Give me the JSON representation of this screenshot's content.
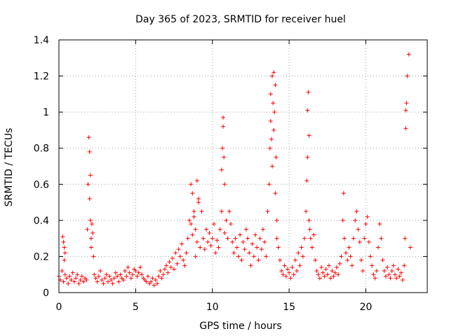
{
  "chart_data": {
    "type": "scatter",
    "title": "Day 365 of 2023, SRMTID for receiver huel",
    "xlabel": "GPS time / hours",
    "ylabel": "SRMTID / TECUs",
    "xlim": [
      0,
      24
    ],
    "ylim": [
      0,
      1.4
    ],
    "xticks": [
      0,
      5,
      10,
      15,
      20
    ],
    "xtick_labels": [
      "0",
      "5",
      "10",
      "15",
      "20"
    ],
    "yticks": [
      0,
      0.2,
      0.4,
      0.6,
      0.8,
      1.0,
      1.2,
      1.4
    ],
    "ytick_labels": [
      "0",
      "0.2",
      "0.4",
      "0.6",
      "0.8",
      "1",
      "1.2",
      "1.4"
    ],
    "grid": true,
    "marker": "plus",
    "color": "#ff0000",
    "series": [
      {
        "name": "huel",
        "x": [
          0.0,
          0.1,
          0.2,
          0.3,
          0.4,
          0.5,
          0.6,
          0.7,
          0.8,
          0.9,
          1.0,
          1.1,
          1.2,
          1.3,
          1.4,
          1.5,
          1.6,
          1.7,
          1.8,
          0.25,
          0.3,
          0.35,
          0.35,
          0.4,
          1.85,
          1.9,
          1.95,
          2.0,
          2.0,
          2.05,
          2.05,
          2.1,
          2.1,
          2.15,
          2.2,
          2.25,
          2.3,
          2.4,
          2.5,
          2.6,
          2.7,
          2.8,
          2.9,
          3.0,
          3.1,
          3.2,
          3.3,
          3.4,
          3.5,
          3.6,
          3.7,
          3.8,
          3.9,
          4.0,
          4.1,
          4.2,
          4.3,
          4.4,
          4.5,
          4.6,
          4.7,
          4.8,
          4.9,
          5.0,
          5.1,
          5.2,
          5.3,
          5.4,
          5.5,
          5.6,
          5.7,
          5.8,
          5.9,
          6.0,
          6.1,
          6.2,
          6.3,
          6.4,
          6.5,
          6.6,
          6.7,
          6.8,
          6.9,
          7.0,
          7.1,
          7.2,
          7.3,
          7.4,
          7.5,
          7.6,
          7.7,
          7.8,
          7.9,
          8.0,
          8.1,
          8.2,
          8.3,
          8.4,
          8.5,
          8.6,
          8.7,
          8.8,
          8.9,
          9.0,
          9.1,
          9.2,
          8.6,
          8.7,
          8.8,
          8.9,
          9.0,
          9.1,
          9.3,
          9.4,
          9.5,
          9.6,
          9.7,
          9.8,
          9.9,
          10.0,
          10.1,
          10.2,
          10.3,
          10.4,
          10.5,
          10.6,
          10.6,
          10.65,
          10.7,
          10.7,
          10.75,
          10.8,
          10.8,
          10.9,
          11.0,
          11.1,
          11.2,
          11.3,
          11.4,
          11.5,
          11.6,
          11.7,
          11.8,
          11.9,
          12.0,
          12.1,
          12.2,
          12.3,
          12.4,
          12.5,
          12.6,
          12.7,
          12.8,
          12.9,
          13.0,
          13.1,
          13.2,
          13.3,
          13.4,
          13.5,
          13.6,
          13.7,
          13.75,
          13.8,
          13.8,
          13.85,
          13.9,
          13.9,
          13.95,
          14.0,
          14.0,
          14.05,
          14.1,
          14.1,
          14.15,
          14.2,
          14.2,
          14.3,
          14.4,
          14.5,
          14.6,
          14.7,
          14.8,
          14.9,
          15.0,
          15.1,
          15.2,
          15.3,
          15.4,
          15.5,
          15.6,
          15.7,
          15.8,
          15.9,
          16.0,
          16.1,
          16.15,
          16.2,
          16.2,
          16.25,
          16.3,
          16.3,
          16.35,
          16.4,
          16.5,
          16.6,
          16.7,
          16.8,
          16.9,
          17.0,
          17.1,
          17.2,
          17.3,
          17.4,
          17.5,
          17.6,
          17.7,
          17.8,
          17.9,
          18.0,
          18.1,
          18.2,
          18.3,
          18.4,
          18.5,
          18.55,
          18.6,
          18.7,
          18.8,
          18.9,
          19.0,
          19.1,
          19.2,
          19.3,
          19.4,
          19.5,
          19.6,
          19.7,
          19.8,
          19.9,
          20.0,
          20.1,
          20.2,
          20.3,
          20.4,
          20.5,
          20.6,
          20.7,
          20.8,
          20.9,
          21.0,
          21.1,
          21.2,
          21.3,
          21.4,
          21.5,
          21.6,
          21.7,
          21.8,
          21.9,
          22.0,
          22.1,
          22.2,
          22.3,
          22.4,
          22.5,
          22.55,
          22.6,
          22.6,
          22.65,
          22.7,
          22.8,
          22.9
        ],
        "y": [
          0.09,
          0.07,
          0.12,
          0.06,
          0.1,
          0.08,
          0.05,
          0.09,
          0.07,
          0.11,
          0.06,
          0.08,
          0.1,
          0.05,
          0.07,
          0.09,
          0.06,
          0.08,
          0.07,
          0.31,
          0.28,
          0.25,
          0.18,
          0.22,
          0.35,
          0.6,
          0.86,
          0.78,
          0.52,
          0.65,
          0.4,
          0.3,
          0.25,
          0.38,
          0.33,
          0.2,
          0.1,
          0.08,
          0.06,
          0.09,
          0.12,
          0.07,
          0.05,
          0.08,
          0.1,
          0.06,
          0.09,
          0.07,
          0.05,
          0.08,
          0.11,
          0.09,
          0.06,
          0.1,
          0.08,
          0.07,
          0.12,
          0.09,
          0.14,
          0.11,
          0.08,
          0.1,
          0.13,
          0.12,
          0.09,
          0.11,
          0.14,
          0.1,
          0.08,
          0.07,
          0.06,
          0.09,
          0.05,
          0.06,
          0.08,
          0.04,
          0.07,
          0.05,
          0.09,
          0.12,
          0.08,
          0.1,
          0.13,
          0.15,
          0.11,
          0.17,
          0.14,
          0.19,
          0.13,
          0.22,
          0.16,
          0.24,
          0.2,
          0.27,
          0.18,
          0.15,
          0.22,
          0.3,
          0.4,
          0.6,
          0.55,
          0.45,
          0.35,
          0.62,
          0.5,
          0.25,
          0.38,
          0.32,
          0.42,
          0.2,
          0.28,
          0.52,
          0.45,
          0.3,
          0.24,
          0.35,
          0.28,
          0.33,
          0.26,
          0.3,
          0.38,
          0.22,
          0.29,
          0.25,
          0.35,
          0.45,
          0.68,
          0.8,
          0.92,
          0.97,
          0.75,
          0.6,
          0.33,
          0.4,
          0.3,
          0.45,
          0.38,
          0.28,
          0.22,
          0.3,
          0.25,
          0.2,
          0.32,
          0.18,
          0.28,
          0.24,
          0.35,
          0.3,
          0.22,
          0.15,
          0.27,
          0.2,
          0.32,
          0.25,
          0.18,
          0.3,
          0.24,
          0.35,
          0.28,
          0.2,
          0.45,
          0.6,
          0.8,
          0.95,
          1.1,
          0.85,
          1.2,
          0.7,
          1.05,
          1.22,
          0.9,
          1.0,
          0.55,
          1.15,
          0.75,
          0.4,
          0.3,
          0.25,
          0.18,
          0.12,
          0.1,
          0.15,
          0.09,
          0.13,
          0.11,
          0.08,
          0.14,
          0.1,
          0.18,
          0.12,
          0.22,
          0.15,
          0.25,
          0.2,
          0.3,
          0.45,
          0.62,
          0.75,
          1.01,
          1.11,
          0.87,
          0.4,
          0.35,
          0.3,
          0.25,
          0.32,
          0.18,
          0.12,
          0.1,
          0.08,
          0.14,
          0.11,
          0.09,
          0.13,
          0.1,
          0.15,
          0.08,
          0.12,
          0.09,
          0.11,
          0.14,
          0.1,
          0.16,
          0.2,
          0.4,
          0.55,
          0.3,
          0.22,
          0.18,
          0.25,
          0.2,
          0.15,
          0.3,
          0.4,
          0.45,
          0.35,
          0.28,
          0.18,
          0.12,
          0.3,
          0.38,
          0.42,
          0.28,
          0.2,
          0.15,
          0.1,
          0.08,
          0.12,
          0.25,
          0.38,
          0.3,
          0.18,
          0.12,
          0.09,
          0.14,
          0.1,
          0.08,
          0.12,
          0.15,
          0.1,
          0.08,
          0.13,
          0.09,
          0.11,
          0.07,
          0.15,
          0.3,
          0.91,
          1.01,
          1.05,
          1.2,
          1.32,
          0.25
        ]
      }
    ]
  }
}
